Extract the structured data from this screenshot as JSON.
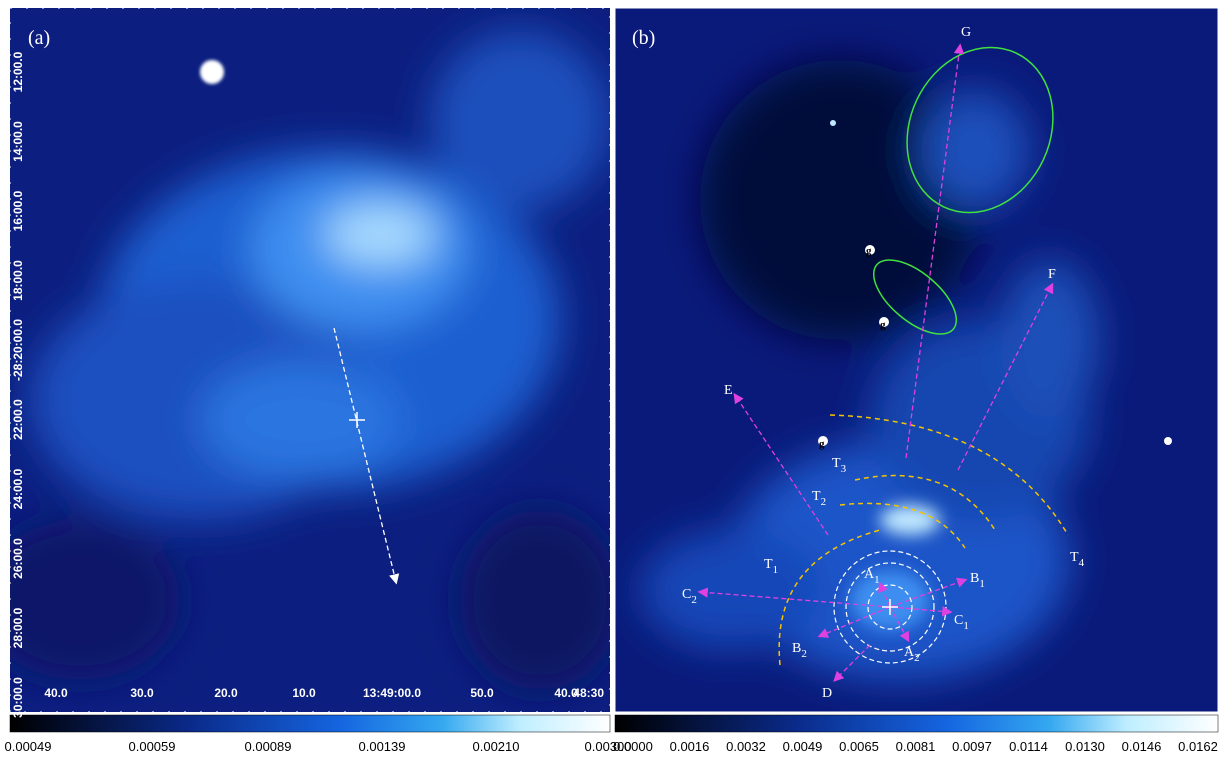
{
  "panels": [
    {
      "label": "(a)",
      "yticks": [
        "12:00.0",
        "14:00.0",
        "16:00.0",
        "18:00.0",
        "-28:20:00.0",
        "22:00.0",
        "24:00.0",
        "26:00.0",
        "28:00.0",
        "30:00.0"
      ],
      "xticks": [
        "40.0",
        "30.0",
        "20.0",
        "10.0",
        "13:49:00.0",
        "50.0",
        "40.0",
        "48:30"
      ],
      "colorbar": [
        "0.00049",
        "0.00059",
        "0.00089",
        "0.00139",
        "0.00210",
        "0.00300"
      ]
    },
    {
      "label": "(b)",
      "annotations": {
        "G": "G",
        "F": "F",
        "E": "E",
        "D": "D",
        "g": "g",
        "T1": {
          "base": "T",
          "sub": "1"
        },
        "T2": {
          "base": "T",
          "sub": "2"
        },
        "T3": {
          "base": "T",
          "sub": "3"
        },
        "T4": {
          "base": "T",
          "sub": "4"
        },
        "A1": {
          "base": "A",
          "sub": "1"
        },
        "A2": {
          "base": "A",
          "sub": "2"
        },
        "B1": {
          "base": "B",
          "sub": "1"
        },
        "B2": {
          "base": "B",
          "sub": "2"
        },
        "C1": {
          "base": "C",
          "sub": "1"
        },
        "C2": {
          "base": "C",
          "sub": "2"
        }
      },
      "colorbar": [
        "0.0000",
        "0.0016",
        "0.0032",
        "0.0049",
        "0.0065",
        "0.0081",
        "0.0097",
        "0.0114",
        "0.0130",
        "0.0146",
        "0.0162"
      ]
    }
  ]
}
